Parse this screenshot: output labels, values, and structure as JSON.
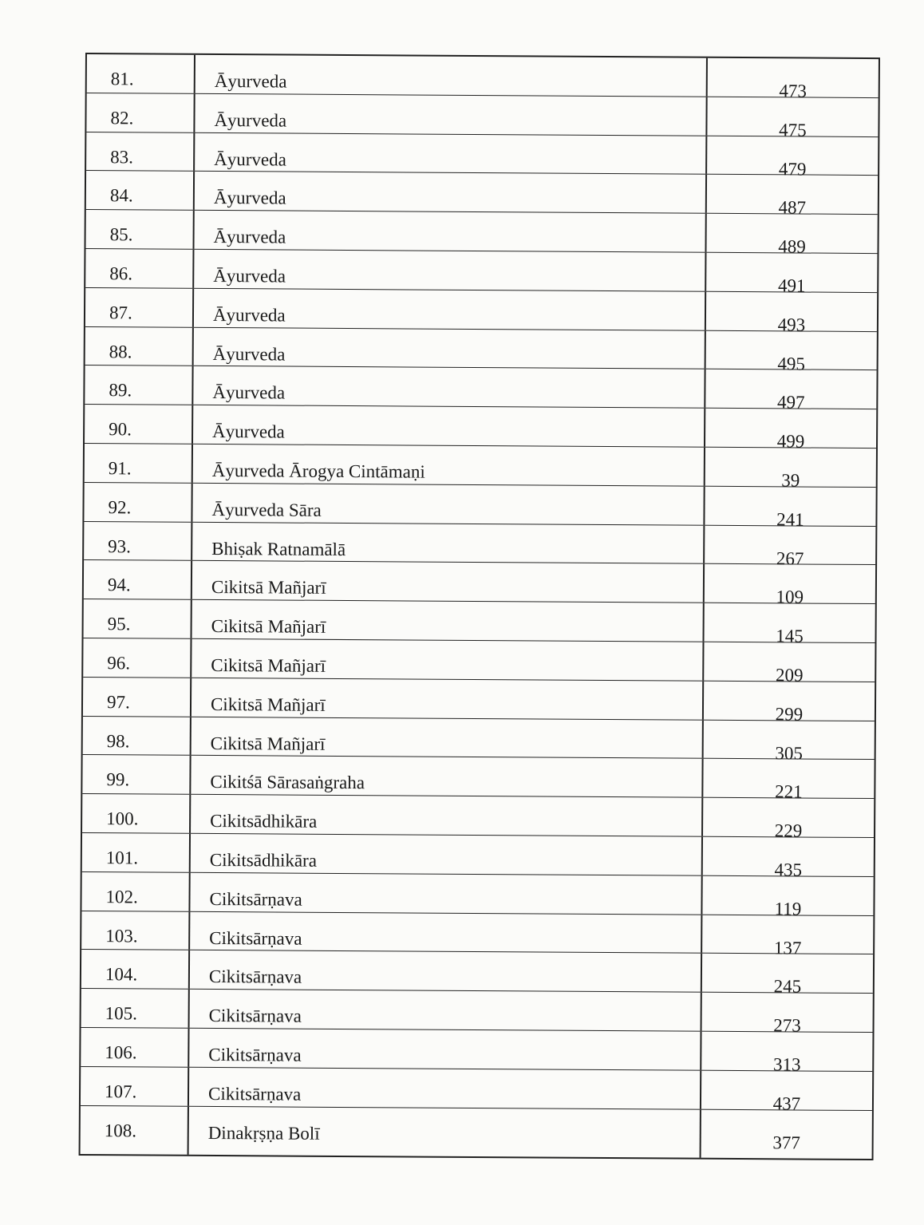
{
  "rows": [
    {
      "no": "81.",
      "title": "Āyurveda",
      "page": "473"
    },
    {
      "no": "82.",
      "title": "Āyurveda",
      "page": "475"
    },
    {
      "no": "83.",
      "title": "Āyurveda",
      "page": "479"
    },
    {
      "no": "84.",
      "title": "Āyurveda",
      "page": "487"
    },
    {
      "no": "85.",
      "title": "Āyurveda",
      "page": "489"
    },
    {
      "no": "86.",
      "title": "Āyurveda",
      "page": "491"
    },
    {
      "no": "87.",
      "title": "Āyurveda",
      "page": "493"
    },
    {
      "no": "88.",
      "title": "Āyurveda",
      "page": "495"
    },
    {
      "no": "89.",
      "title": "Āyurveda",
      "page": "497"
    },
    {
      "no": "90.",
      "title": "Āyurveda",
      "page": "499"
    },
    {
      "no": "91.",
      "title": "Āyurveda Ārogya Cintāmaṇi",
      "page": "39"
    },
    {
      "no": "92.",
      "title": "Āyurveda Sāra",
      "page": "241"
    },
    {
      "no": "93.",
      "title": "Bhiṣak Ratnamālā",
      "page": "267"
    },
    {
      "no": "94.",
      "title": "Cikitsā Mañjarī",
      "page": "109"
    },
    {
      "no": "95.",
      "title": "Cikitsā Mañjarī",
      "page": "145"
    },
    {
      "no": "96.",
      "title": "Cikitsā Mañjarī",
      "page": "209"
    },
    {
      "no": "97.",
      "title": "Cikitsā Mañjarī",
      "page": "299"
    },
    {
      "no": "98.",
      "title": "Cikitsā Mañjarī",
      "page": "305"
    },
    {
      "no": "99.",
      "title": "Cikitśā Sārasaṅgraha",
      "page": "221"
    },
    {
      "no": "100.",
      "title": "Cikitsādhikāra",
      "page": "229"
    },
    {
      "no": "101.",
      "title": "Cikitsādhikāra",
      "page": "435"
    },
    {
      "no": "102.",
      "title": "Cikitsārṇava",
      "page": "119"
    },
    {
      "no": "103.",
      "title": "Cikitsārṇava",
      "page": "137"
    },
    {
      "no": "104.",
      "title": "Cikitsārṇava",
      "page": "245"
    },
    {
      "no": "105.",
      "title": "Cikitsārṇava",
      "page": "273"
    },
    {
      "no": "106.",
      "title": "Cikitsārṇava",
      "page": "313"
    },
    {
      "no": "107.",
      "title": "Cikitsārṇava",
      "page": "437"
    },
    {
      "no": "108.",
      "title": "Dinakṛṣṇa Bolī",
      "page": "377"
    }
  ]
}
